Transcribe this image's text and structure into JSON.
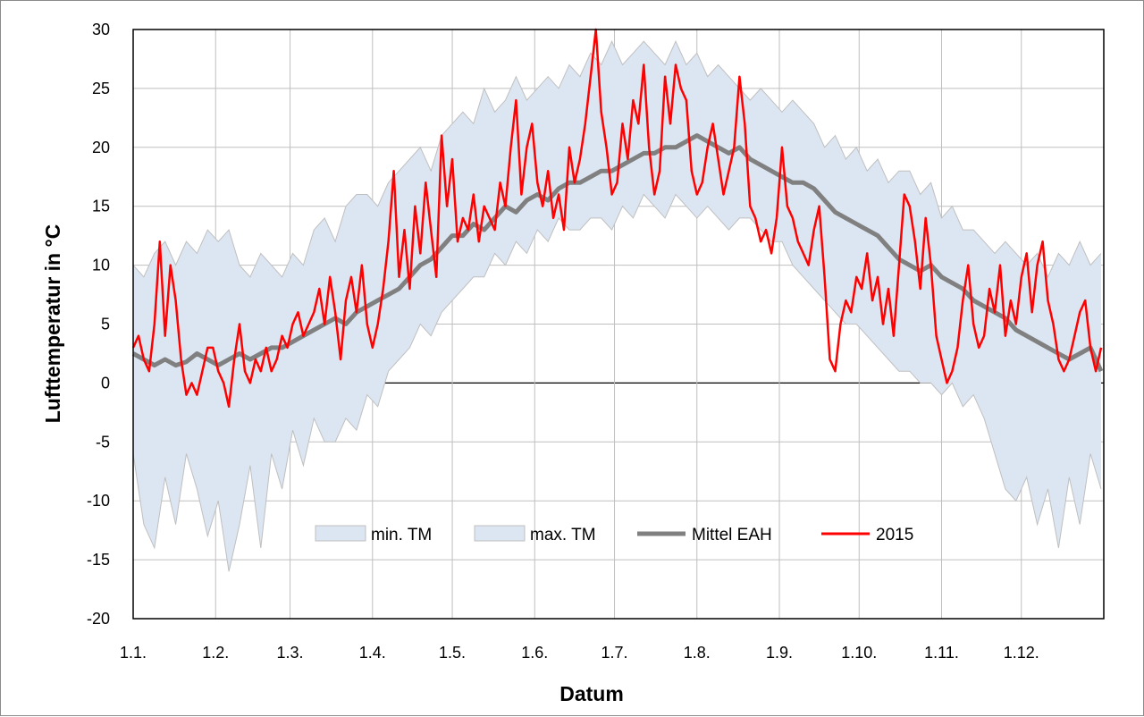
{
  "chart_data": {
    "type": "area",
    "title": "",
    "xlabel": "Datum",
    "ylabel": "Lufttemperatur in °C",
    "ylim": [
      -20,
      30
    ],
    "y_ticks": [
      30,
      25,
      20,
      15,
      10,
      5,
      0,
      -5,
      -10,
      -15,
      -20
    ],
    "x_tick_labels": [
      "1.1.",
      "1.2.",
      "1.3.",
      "1.4.",
      "1.5.",
      "1.6.",
      "1.7.",
      "1.8.",
      "1.9.",
      "1.10.",
      "1.11.",
      "1.12."
    ],
    "x_tick_days": [
      1,
      32,
      60,
      91,
      121,
      152,
      182,
      213,
      244,
      274,
      305,
      335
    ],
    "xlim": [
      1,
      366
    ],
    "grid": true,
    "legend_position": "bottom-center",
    "colors": {
      "band_fill": "#dce6f2",
      "band_edge": "#bfbfbf",
      "mean_line": "#808080",
      "year_line": "#ff0000",
      "grid": "#bfbfbf"
    },
    "legend": [
      "min. TM",
      "max. TM",
      "Mittel EAH",
      "2015"
    ],
    "series": [
      {
        "name": "min. TM",
        "x": [
          1,
          5,
          9,
          13,
          17,
          21,
          25,
          29,
          33,
          37,
          41,
          45,
          49,
          53,
          57,
          61,
          65,
          69,
          73,
          77,
          81,
          85,
          89,
          93,
          97,
          101,
          105,
          109,
          113,
          117,
          121,
          125,
          129,
          133,
          137,
          141,
          145,
          149,
          153,
          157,
          161,
          165,
          169,
          173,
          177,
          181,
          185,
          189,
          193,
          197,
          201,
          205,
          209,
          213,
          217,
          221,
          225,
          229,
          233,
          237,
          241,
          245,
          249,
          253,
          257,
          261,
          265,
          269,
          273,
          277,
          281,
          285,
          289,
          293,
          297,
          301,
          305,
          309,
          313,
          317,
          321,
          325,
          329,
          333,
          337,
          341,
          345,
          349,
          353,
          357,
          361,
          365
        ],
        "y": [
          -6,
          -12,
          -14,
          -8,
          -12,
          -6,
          -9,
          -13,
          -10,
          -16,
          -12,
          -7,
          -14,
          -6,
          -9,
          -4,
          -7,
          -3,
          -5,
          -5,
          -3,
          -4,
          -1,
          -2,
          1,
          2,
          3,
          5,
          4,
          6,
          7,
          8,
          9,
          9,
          11,
          10,
          12,
          11,
          13,
          12,
          14,
          13,
          13,
          14,
          14,
          13,
          15,
          14,
          16,
          15,
          14,
          16,
          15,
          14,
          15,
          14,
          13,
          14,
          14,
          13,
          12,
          12,
          10,
          9,
          8,
          7,
          6,
          5,
          5,
          4,
          3,
          2,
          1,
          1,
          0,
          0,
          -1,
          0,
          -2,
          -1,
          -3,
          -6,
          -9,
          -10,
          -8,
          -12,
          -9,
          -14,
          -8,
          -12,
          -6,
          -9
        ]
      },
      {
        "name": "max. TM",
        "x": [
          1,
          5,
          9,
          13,
          17,
          21,
          25,
          29,
          33,
          37,
          41,
          45,
          49,
          53,
          57,
          61,
          65,
          69,
          73,
          77,
          81,
          85,
          89,
          93,
          97,
          101,
          105,
          109,
          113,
          117,
          121,
          125,
          129,
          133,
          137,
          141,
          145,
          149,
          153,
          157,
          161,
          165,
          169,
          173,
          177,
          181,
          185,
          189,
          193,
          197,
          201,
          205,
          209,
          213,
          217,
          221,
          225,
          229,
          233,
          237,
          241,
          245,
          249,
          253,
          257,
          261,
          265,
          269,
          273,
          277,
          281,
          285,
          289,
          293,
          297,
          301,
          305,
          309,
          313,
          317,
          321,
          325,
          329,
          333,
          337,
          341,
          345,
          349,
          353,
          357,
          361,
          365
        ],
        "y": [
          10,
          9,
          11,
          12,
          10,
          12,
          11,
          13,
          12,
          13,
          10,
          9,
          11,
          10,
          9,
          11,
          10,
          13,
          14,
          12,
          15,
          16,
          16,
          15,
          17,
          18,
          19,
          20,
          18,
          21,
          22,
          23,
          22,
          25,
          23,
          24,
          26,
          24,
          25,
          26,
          25,
          27,
          26,
          28,
          27,
          29,
          27,
          28,
          29,
          28,
          27,
          29,
          27,
          28,
          26,
          27,
          26,
          25,
          24,
          25,
          24,
          23,
          24,
          23,
          22,
          20,
          21,
          19,
          20,
          18,
          19,
          17,
          18,
          18,
          16,
          17,
          14,
          15,
          13,
          13,
          12,
          11,
          12,
          11,
          10,
          11,
          9,
          11,
          10,
          12,
          10,
          11
        ]
      },
      {
        "name": "Mittel EAH",
        "x": [
          1,
          5,
          9,
          13,
          17,
          21,
          25,
          29,
          33,
          37,
          41,
          45,
          49,
          53,
          57,
          61,
          65,
          69,
          73,
          77,
          81,
          85,
          89,
          93,
          97,
          101,
          105,
          109,
          113,
          117,
          121,
          125,
          129,
          133,
          137,
          141,
          145,
          149,
          153,
          157,
          161,
          165,
          169,
          173,
          177,
          181,
          185,
          189,
          193,
          197,
          201,
          205,
          209,
          213,
          217,
          221,
          225,
          229,
          233,
          237,
          241,
          245,
          249,
          253,
          257,
          261,
          265,
          269,
          273,
          277,
          281,
          285,
          289,
          293,
          297,
          301,
          305,
          309,
          313,
          317,
          321,
          325,
          329,
          333,
          337,
          341,
          345,
          349,
          353,
          357,
          361,
          365
        ],
        "y": [
          2.5,
          2,
          1.5,
          2,
          1.5,
          1.8,
          2.5,
          2,
          1.5,
          2,
          2.5,
          2,
          2.5,
          3,
          3,
          3.5,
          4,
          4.5,
          5,
          5.5,
          5,
          6,
          6.5,
          7,
          7.5,
          8,
          9,
          10,
          10.5,
          11.5,
          12.5,
          12.5,
          13.5,
          13,
          14,
          15,
          14.5,
          15.5,
          16,
          15.5,
          16.5,
          17,
          17,
          17.5,
          18,
          18,
          18.5,
          19,
          19.5,
          19.5,
          20,
          20,
          20.5,
          21,
          20.5,
          20,
          19.5,
          20,
          19,
          18.5,
          18,
          17.5,
          17,
          17,
          16.5,
          15.5,
          14.5,
          14,
          13.5,
          13,
          12.5,
          11.5,
          10.5,
          10,
          9.5,
          10,
          9,
          8.5,
          8,
          7,
          6.5,
          6,
          5.5,
          4.5,
          4,
          3.5,
          3,
          2.5,
          2,
          2.5,
          3,
          1
        ]
      },
      {
        "name": "2015",
        "x": [
          1,
          3,
          5,
          7,
          9,
          11,
          13,
          15,
          17,
          19,
          21,
          23,
          25,
          27,
          29,
          31,
          33,
          35,
          37,
          39,
          41,
          43,
          45,
          47,
          49,
          51,
          53,
          55,
          57,
          59,
          61,
          63,
          65,
          67,
          69,
          71,
          73,
          75,
          77,
          79,
          81,
          83,
          85,
          87,
          89,
          91,
          93,
          95,
          97,
          99,
          101,
          103,
          105,
          107,
          109,
          111,
          113,
          115,
          117,
          119,
          121,
          123,
          125,
          127,
          129,
          131,
          133,
          135,
          137,
          139,
          141,
          143,
          145,
          147,
          149,
          151,
          153,
          155,
          157,
          159,
          161,
          163,
          165,
          167,
          169,
          171,
          173,
          175,
          177,
          179,
          181,
          183,
          185,
          187,
          189,
          191,
          193,
          195,
          197,
          199,
          201,
          203,
          205,
          207,
          209,
          211,
          213,
          215,
          217,
          219,
          221,
          223,
          225,
          227,
          229,
          231,
          233,
          235,
          237,
          239,
          241,
          243,
          245,
          247,
          249,
          251,
          253,
          255,
          257,
          259,
          261,
          263,
          265,
          267,
          269,
          271,
          273,
          275,
          277,
          279,
          281,
          283,
          285,
          287,
          289,
          291,
          293,
          295,
          297,
          299,
          301,
          303,
          305,
          307,
          309,
          311,
          313,
          315,
          317,
          319,
          321,
          323,
          325,
          327,
          329,
          331,
          333,
          335,
          337,
          339,
          341,
          343,
          345,
          347,
          349,
          351,
          353,
          355,
          357,
          359,
          361,
          363,
          365
        ],
        "y": [
          3,
          4,
          2,
          1,
          5,
          12,
          4,
          10,
          7,
          2,
          -1,
          0,
          -1,
          1,
          3,
          3,
          1,
          0,
          -2,
          2,
          5,
          1,
          0,
          2,
          1,
          3,
          1,
          2,
          4,
          3,
          5,
          6,
          4,
          5,
          6,
          8,
          5,
          9,
          6,
          2,
          7,
          9,
          6,
          10,
          5,
          3,
          5,
          8,
          12,
          18,
          9,
          13,
          8,
          15,
          11,
          17,
          13,
          9,
          21,
          15,
          19,
          12,
          14,
          13,
          16,
          12,
          15,
          14,
          13,
          17,
          15,
          20,
          24,
          16,
          20,
          22,
          17,
          15,
          18,
          14,
          16,
          13,
          20,
          17,
          19,
          22,
          26,
          30,
          23,
          20,
          16,
          17,
          22,
          19,
          24,
          22,
          27,
          20,
          16,
          18,
          26,
          22,
          27,
          25,
          24,
          18,
          16,
          17,
          20,
          22,
          19,
          16,
          18,
          20,
          26,
          22,
          15,
          14,
          12,
          13,
          11,
          14,
          20,
          15,
          14,
          12,
          11,
          10,
          13,
          15,
          9,
          2,
          1,
          5,
          7,
          6,
          9,
          8,
          11,
          7,
          9,
          5,
          8,
          4,
          10,
          16,
          15,
          12,
          8,
          14,
          10,
          4,
          2,
          0,
          1,
          3,
          7,
          10,
          5,
          3,
          4,
          8,
          6,
          10,
          4,
          7,
          5,
          9,
          11,
          6,
          10,
          12,
          7,
          5,
          2,
          1,
          2,
          4,
          6,
          7,
          3,
          1,
          3
        ]
      }
    ]
  }
}
